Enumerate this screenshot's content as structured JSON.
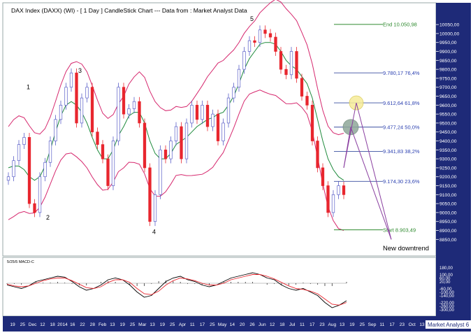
{
  "header": {
    "title": "DAX Index (DAXX) (WI) -  [ 1 Day ] CandleStick Chart --- Data from : Market Analyst Data"
  },
  "colors": {
    "bollinger": "#d6286e",
    "moving_average": "#1e8a3c",
    "candle_up": "#5a5fc8",
    "candle_down": "#e8262e",
    "fib_line": "#3a4fa0",
    "fib_text": "#2a3fb0",
    "end_start_text": "#2f8a2f",
    "target_lines": "#8a3fa0",
    "yellow_circle": "#f6ec9a",
    "gray_circle": "#8fa79a",
    "axis_bg": "#1e2a78",
    "axis_text": "#ffffff"
  },
  "chart_data": [
    {
      "type": "line",
      "panel": "price",
      "y_axis_ticks": [
        "10050,00",
        "10000,00",
        "9950,00",
        "9900,00",
        "9850,00",
        "9800,00",
        "9750,00",
        "9700,00",
        "9650,00",
        "9600,00",
        "9550,00",
        "9500,00",
        "9450,00",
        "9400,00",
        "9350,00",
        "9300,00",
        "9250,00",
        "9200,00",
        "9150,00",
        "9100,00",
        "9050,00",
        "9000,00",
        "8950,00",
        "8900,00",
        "8850,00"
      ],
      "ylim": [
        8820,
        10070
      ],
      "x_axis_ticks": [
        "19",
        "25",
        "Dec",
        "12",
        "18",
        "2014",
        "16",
        "22",
        "28",
        "Feb",
        "13",
        "19",
        "25",
        "Mar",
        "13",
        "19",
        "25",
        "Apr",
        "11",
        "17",
        "25",
        "May",
        "14",
        "20",
        "26",
        "Jun",
        "12",
        "18",
        "Jul",
        "11",
        "17",
        "23",
        "Aug",
        "13",
        "19",
        "25",
        "Sep",
        "11",
        "17",
        "23",
        "Oct",
        "13"
      ],
      "wave_labels": [
        "1",
        "2",
        "3",
        "4",
        "5"
      ],
      "fib_levels": [
        {
          "label": "End 10.050,98",
          "value": 10050.98
        },
        {
          "label": "9.780,17 76,4%",
          "value": 9780.17
        },
        {
          "label": "9.612,64 61,8%",
          "value": 9612.64
        },
        {
          "label": "9.477,24 50,0%",
          "value": 9477.24
        },
        {
          "label": "9.341,83 38,2%",
          "value": 9341.83
        },
        {
          "label": "9.174,30 23,6%",
          "value": 9174.3
        },
        {
          "label": "Start 8.903,49",
          "value": 8903.49
        }
      ],
      "annotation": "New downtrend",
      "series": [
        {
          "name": "",
          "type": "candlestick",
          "approx_closes": [
            9200,
            9290,
            9380,
            9420,
            9050,
            9000,
            9200,
            9280,
            9400,
            9520,
            9600,
            9700,
            9780,
            9500,
            9640,
            9700,
            9450,
            9380,
            9300,
            9150,
            9400,
            9700,
            9550,
            9580,
            9620,
            9500,
            9250,
            8950,
            9100,
            9350,
            9300,
            9400,
            9480,
            9300,
            9500,
            9600,
            9520,
            9600,
            9480,
            9550,
            9400,
            9500,
            9640,
            9700,
            9800,
            9900,
            9960,
            9950,
            10020,
            10000,
            9980,
            9900,
            9800,
            9770,
            9900,
            9750,
            9650,
            9600,
            9400,
            9250,
            9150,
            9000,
            9100,
            9150,
            9100
          ]
        },
        {
          "name": "",
          "type": "moving_average",
          "approx_values": [
            9250,
            9260,
            9260,
            9240,
            9200,
            9180,
            9200,
            9260,
            9350,
            9450,
            9540,
            9600,
            9620,
            9600,
            9560,
            9500,
            9420,
            9350,
            9300,
            9300,
            9350,
            9430,
            9480,
            9540,
            9560,
            9560,
            9500,
            9400,
            9330,
            9300,
            9300,
            9330,
            9380,
            9400,
            9420,
            9450,
            9480,
            9500,
            9520,
            9530,
            9550,
            9560,
            9600,
            9650,
            9720,
            9800,
            9860,
            9900,
            9940,
            9950,
            9950,
            9940,
            9900,
            9850,
            9820,
            9800,
            9760,
            9720,
            9640,
            9520,
            9400,
            9300,
            9240,
            9200,
            9180
          ]
        }
      ]
    },
    {
      "type": "line",
      "panel": "macd",
      "title": "5/25/5 MACD-C",
      "y_axis_ticks": [
        "180,00",
        "100,00",
        "60,00",
        "20,00",
        "-60,00",
        "-100,00",
        "-140,00",
        "-220,00",
        "-260,00",
        "-300,00"
      ],
      "ylim": [
        -320,
        200
      ],
      "series": [
        {
          "name": "",
          "approx_values": [
            -20,
            -40,
            -60,
            -30,
            20,
            40,
            60,
            80,
            70,
            20,
            -40,
            -80,
            -60,
            -20,
            40,
            60,
            40,
            -20,
            -100,
            -160,
            -140,
            -60,
            20,
            60,
            80,
            40,
            20,
            -20,
            -40,
            -20,
            20,
            60,
            80,
            100,
            120,
            100,
            60,
            40,
            -20,
            -60,
            -80,
            -60,
            -100,
            -140,
            -220,
            -280,
            -250,
            -200
          ]
        },
        {
          "name": "",
          "approx_values": [
            -10,
            -30,
            -40,
            -30,
            0,
            30,
            50,
            60,
            60,
            30,
            -10,
            -50,
            -60,
            -40,
            10,
            40,
            40,
            10,
            -60,
            -120,
            -130,
            -90,
            -20,
            30,
            60,
            50,
            30,
            0,
            -20,
            -20,
            0,
            40,
            60,
            80,
            100,
            100,
            80,
            50,
            10,
            -30,
            -60,
            -70,
            -90,
            -120,
            -180,
            -240,
            -250,
            -220
          ]
        }
      ]
    }
  ],
  "footer": {
    "brand": "Market Analyst 6"
  }
}
